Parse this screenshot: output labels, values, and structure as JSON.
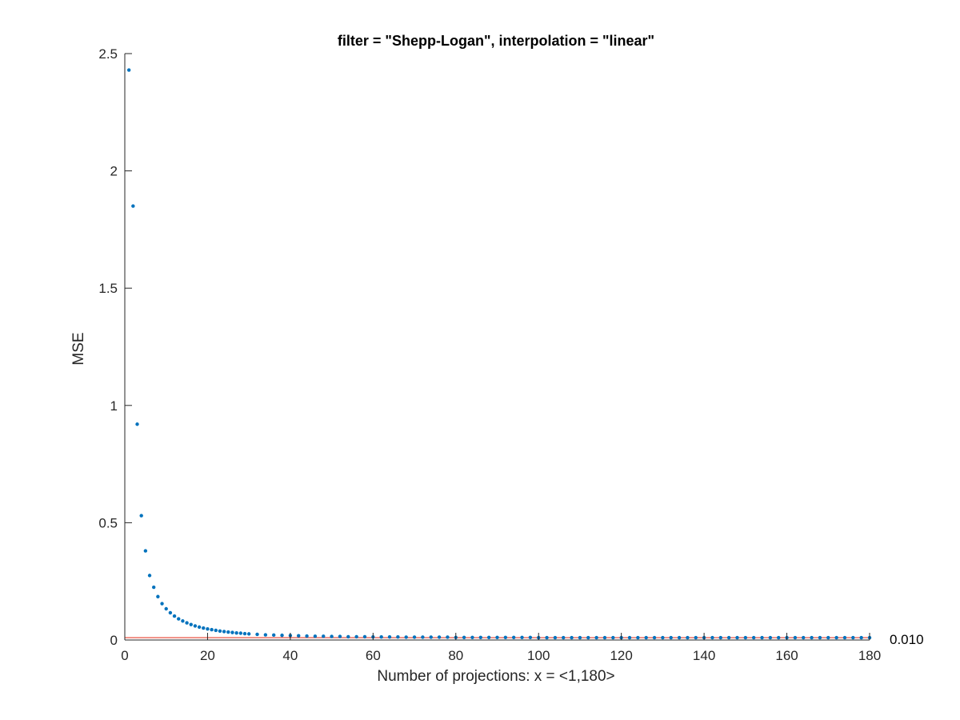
{
  "chart_data": {
    "type": "scatter",
    "title": "filter = \"Shepp-Logan\", interpolation = \"linear\"",
    "xlabel": "Number of projections: x = <1,180>",
    "ylabel": "MSE",
    "xlim": [
      0,
      180
    ],
    "ylim": [
      0,
      2.5
    ],
    "xticks": [
      0,
      20,
      40,
      60,
      80,
      100,
      120,
      140,
      160,
      180
    ],
    "yticks": [
      0,
      0.5,
      1,
      1.5,
      2,
      2.5
    ],
    "xtick_labels": [
      "0",
      "20",
      "40",
      "60",
      "80",
      "100",
      "120",
      "140",
      "160",
      "180"
    ],
    "ytick_labels": [
      "0",
      "0.5",
      "1",
      "1.5",
      "2",
      "2.5"
    ],
    "grid": false,
    "colors": {
      "points": "#0072BD",
      "reference_line": "#e8412e",
      "axes": "#262626"
    },
    "reference_line": {
      "y": 0.01,
      "label": "0.010"
    },
    "series": [
      {
        "points": [
          [
            1,
            2.43
          ],
          [
            2,
            1.85
          ],
          [
            3,
            0.92
          ],
          [
            4,
            0.53
          ],
          [
            5,
            0.38
          ],
          [
            6,
            0.275
          ],
          [
            7,
            0.225
          ],
          [
            8,
            0.185
          ],
          [
            9,
            0.155
          ],
          [
            10,
            0.133
          ],
          [
            11,
            0.116
          ],
          [
            12,
            0.102
          ],
          [
            13,
            0.09
          ],
          [
            14,
            0.081
          ],
          [
            15,
            0.073
          ],
          [
            16,
            0.066
          ],
          [
            17,
            0.06
          ],
          [
            18,
            0.055
          ],
          [
            19,
            0.051
          ],
          [
            20,
            0.047
          ],
          [
            21,
            0.044
          ],
          [
            22,
            0.041
          ],
          [
            23,
            0.038
          ],
          [
            24,
            0.036
          ],
          [
            25,
            0.034
          ],
          [
            26,
            0.032
          ],
          [
            27,
            0.03
          ],
          [
            28,
            0.029
          ],
          [
            29,
            0.027
          ],
          [
            30,
            0.026
          ],
          [
            32,
            0.024
          ],
          [
            34,
            0.022
          ],
          [
            36,
            0.021
          ],
          [
            38,
            0.02
          ],
          [
            40,
            0.019
          ],
          [
            42,
            0.018
          ],
          [
            44,
            0.017
          ],
          [
            46,
            0.016
          ],
          [
            48,
            0.016
          ],
          [
            50,
            0.015
          ],
          [
            52,
            0.015
          ],
          [
            54,
            0.014
          ],
          [
            56,
            0.014
          ],
          [
            58,
            0.014
          ],
          [
            60,
            0.013
          ],
          [
            62,
            0.013
          ],
          [
            64,
            0.013
          ],
          [
            66,
            0.013
          ],
          [
            68,
            0.012
          ],
          [
            70,
            0.012
          ],
          [
            72,
            0.012
          ],
          [
            74,
            0.012
          ],
          [
            76,
            0.012
          ],
          [
            78,
            0.012
          ],
          [
            80,
            0.011
          ],
          [
            82,
            0.011
          ],
          [
            84,
            0.011
          ],
          [
            86,
            0.011
          ],
          [
            88,
            0.011
          ],
          [
            90,
            0.011
          ],
          [
            92,
            0.011
          ],
          [
            94,
            0.011
          ],
          [
            96,
            0.011
          ],
          [
            98,
            0.011
          ],
          [
            100,
            0.01
          ],
          [
            102,
            0.01
          ],
          [
            104,
            0.01
          ],
          [
            106,
            0.01
          ],
          [
            108,
            0.01
          ],
          [
            110,
            0.01
          ],
          [
            112,
            0.01
          ],
          [
            114,
            0.01
          ],
          [
            116,
            0.01
          ],
          [
            118,
            0.01
          ],
          [
            120,
            0.01
          ],
          [
            122,
            0.01
          ],
          [
            124,
            0.01
          ],
          [
            126,
            0.01
          ],
          [
            128,
            0.01
          ],
          [
            130,
            0.01
          ],
          [
            132,
            0.01
          ],
          [
            134,
            0.01
          ],
          [
            136,
            0.01
          ],
          [
            138,
            0.01
          ],
          [
            140,
            0.01
          ],
          [
            142,
            0.01
          ],
          [
            144,
            0.01
          ],
          [
            146,
            0.01
          ],
          [
            148,
            0.01
          ],
          [
            150,
            0.01
          ],
          [
            152,
            0.01
          ],
          [
            154,
            0.01
          ],
          [
            156,
            0.01
          ],
          [
            158,
            0.01
          ],
          [
            160,
            0.01
          ],
          [
            162,
            0.01
          ],
          [
            164,
            0.01
          ],
          [
            166,
            0.01
          ],
          [
            168,
            0.01
          ],
          [
            170,
            0.01
          ],
          [
            172,
            0.01
          ],
          [
            174,
            0.01
          ],
          [
            176,
            0.01
          ],
          [
            178,
            0.01
          ],
          [
            180,
            0.01
          ]
        ]
      }
    ]
  }
}
